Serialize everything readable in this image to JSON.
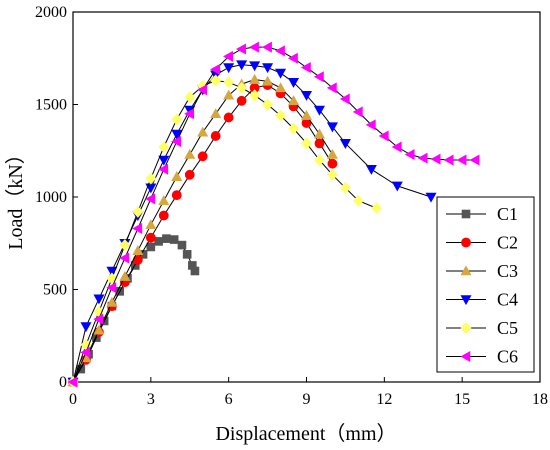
{
  "chart_data": {
    "type": "line",
    "xlabel": "Displacement（mm）",
    "ylabel": "Load（kN）",
    "xlim": [
      0,
      18
    ],
    "ylim": [
      0,
      2000
    ],
    "xticks": [
      0,
      3,
      6,
      9,
      12,
      15,
      18
    ],
    "yticks": [
      0,
      500,
      1000,
      1500,
      2000
    ],
    "grid": false,
    "legend_position": "right",
    "series": [
      {
        "name": "C1",
        "color": "#555555",
        "marker": "square",
        "points": [
          [
            0,
            0
          ],
          [
            0.3,
            70
          ],
          [
            0.6,
            150
          ],
          [
            0.9,
            240
          ],
          [
            1.2,
            330
          ],
          [
            1.5,
            410
          ],
          [
            1.8,
            490
          ],
          [
            2.1,
            560
          ],
          [
            2.4,
            630
          ],
          [
            2.7,
            690
          ],
          [
            3.0,
            730
          ],
          [
            3.3,
            760
          ],
          [
            3.6,
            775
          ],
          [
            3.9,
            770
          ],
          [
            4.2,
            740
          ],
          [
            4.4,
            690
          ],
          [
            4.6,
            630
          ],
          [
            4.7,
            600
          ]
        ]
      },
      {
        "name": "C2",
        "color": "#ff0000",
        "marker": "circle",
        "points": [
          [
            0,
            0
          ],
          [
            0.5,
            120
          ],
          [
            1.0,
            270
          ],
          [
            1.5,
            410
          ],
          [
            2.0,
            540
          ],
          [
            2.5,
            660
          ],
          [
            3.0,
            780
          ],
          [
            3.5,
            900
          ],
          [
            4.0,
            1010
          ],
          [
            4.5,
            1120
          ],
          [
            5.0,
            1220
          ],
          [
            5.5,
            1330
          ],
          [
            6.0,
            1430
          ],
          [
            6.5,
            1520
          ],
          [
            7.0,
            1590
          ],
          [
            7.5,
            1605
          ],
          [
            8.0,
            1560
          ],
          [
            8.5,
            1490
          ],
          [
            9.0,
            1400
          ],
          [
            9.5,
            1290
          ],
          [
            10.0,
            1180
          ]
        ]
      },
      {
        "name": "C3",
        "color": "#d6a640",
        "marker": "triangle-up",
        "points": [
          [
            0,
            0
          ],
          [
            0.5,
            130
          ],
          [
            1.0,
            280
          ],
          [
            1.5,
            430
          ],
          [
            2.0,
            570
          ],
          [
            2.5,
            710
          ],
          [
            3.0,
            850
          ],
          [
            3.5,
            980
          ],
          [
            4.0,
            1110
          ],
          [
            4.5,
            1230
          ],
          [
            5.0,
            1350
          ],
          [
            5.5,
            1450
          ],
          [
            6.0,
            1550
          ],
          [
            6.5,
            1610
          ],
          [
            7.0,
            1635
          ],
          [
            7.5,
            1625
          ],
          [
            8.0,
            1590
          ],
          [
            8.5,
            1520
          ],
          [
            9.0,
            1440
          ],
          [
            9.5,
            1340
          ],
          [
            10.0,
            1230
          ]
        ]
      },
      {
        "name": "C4",
        "color": "#0000ff",
        "marker": "triangle-down",
        "points": [
          [
            0,
            0
          ],
          [
            0.5,
            300
          ],
          [
            1.0,
            450
          ],
          [
            1.5,
            600
          ],
          [
            2.0,
            750
          ],
          [
            2.5,
            900
          ],
          [
            3.0,
            1050
          ],
          [
            3.5,
            1200
          ],
          [
            4.0,
            1340
          ],
          [
            4.5,
            1470
          ],
          [
            5.0,
            1580
          ],
          [
            5.5,
            1660
          ],
          [
            6.0,
            1700
          ],
          [
            6.5,
            1715
          ],
          [
            7.0,
            1710
          ],
          [
            7.5,
            1700
          ],
          [
            8.0,
            1670
          ],
          [
            8.5,
            1620
          ],
          [
            9.0,
            1550
          ],
          [
            9.5,
            1470
          ],
          [
            10.0,
            1380
          ],
          [
            10.5,
            1290
          ],
          [
            11.5,
            1150
          ],
          [
            12.5,
            1060
          ],
          [
            13.8,
            1000
          ]
        ]
      },
      {
        "name": "C5",
        "color": "#ffff66",
        "marker": "diamond",
        "points": [
          [
            0,
            0
          ],
          [
            0.5,
            200
          ],
          [
            1.0,
            380
          ],
          [
            1.5,
            560
          ],
          [
            2.0,
            740
          ],
          [
            2.5,
            920
          ],
          [
            3.0,
            1100
          ],
          [
            3.5,
            1270
          ],
          [
            4.0,
            1420
          ],
          [
            4.5,
            1540
          ],
          [
            5.0,
            1600
          ],
          [
            5.5,
            1630
          ],
          [
            6.0,
            1620
          ],
          [
            6.5,
            1590
          ],
          [
            7.0,
            1550
          ],
          [
            7.5,
            1500
          ],
          [
            8.0,
            1440
          ],
          [
            8.5,
            1370
          ],
          [
            9.0,
            1290
          ],
          [
            9.5,
            1200
          ],
          [
            10.0,
            1120
          ],
          [
            10.5,
            1050
          ],
          [
            11.0,
            980
          ],
          [
            11.7,
            940
          ]
        ]
      },
      {
        "name": "C6",
        "color": "#ff00ff",
        "marker": "triangle-left",
        "points": [
          [
            0,
            0
          ],
          [
            0.5,
            160
          ],
          [
            1.0,
            340
          ],
          [
            1.5,
            510
          ],
          [
            2.0,
            670
          ],
          [
            2.5,
            830
          ],
          [
            3.0,
            990
          ],
          [
            3.5,
            1150
          ],
          [
            4.0,
            1300
          ],
          [
            4.5,
            1450
          ],
          [
            5.0,
            1580
          ],
          [
            5.5,
            1690
          ],
          [
            6.0,
            1760
          ],
          [
            6.5,
            1800
          ],
          [
            7.0,
            1810
          ],
          [
            7.5,
            1810
          ],
          [
            8.0,
            1790
          ],
          [
            8.5,
            1750
          ],
          [
            9.0,
            1700
          ],
          [
            9.5,
            1650
          ],
          [
            10.0,
            1590
          ],
          [
            10.5,
            1530
          ],
          [
            11.0,
            1460
          ],
          [
            11.5,
            1390
          ],
          [
            12.0,
            1330
          ],
          [
            12.5,
            1270
          ],
          [
            13.0,
            1230
          ],
          [
            13.5,
            1210
          ],
          [
            14.0,
            1205
          ],
          [
            14.5,
            1200
          ],
          [
            15.0,
            1200
          ],
          [
            15.5,
            1200
          ]
        ]
      }
    ]
  }
}
